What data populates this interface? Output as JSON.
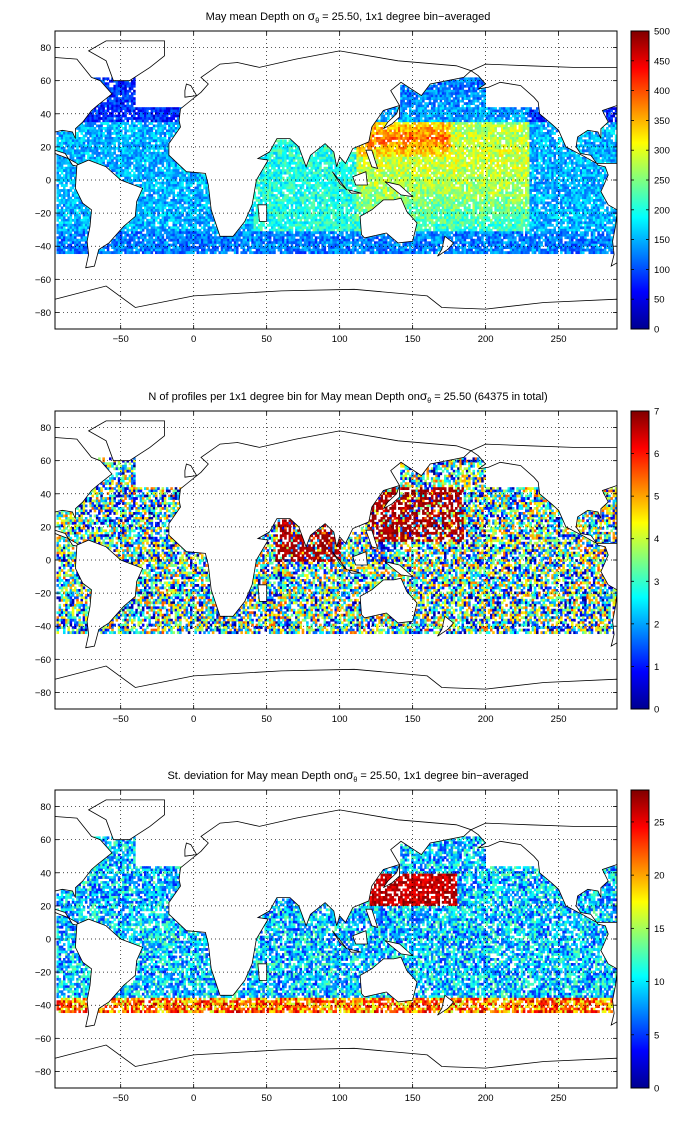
{
  "chart_data": [
    {
      "type": "heatmap",
      "title": {
        "prefix": "May mean Depth on ",
        "sigma": "σ",
        "sub": "θ",
        "suffix": " = 25.50, 1x1 degree bin−averaged"
      },
      "xlim": [
        -95,
        290
      ],
      "ylim": [
        -90,
        90
      ],
      "x_ticks": [
        -50,
        0,
        50,
        100,
        150,
        200,
        250
      ],
      "y_ticks": [
        80,
        60,
        40,
        20,
        0,
        -20,
        -40,
        -60,
        -80
      ],
      "grid": "dotted",
      "colorbar": {
        "range": [
          0,
          500
        ],
        "ticks": [
          0,
          50,
          100,
          150,
          200,
          250,
          300,
          350,
          400,
          450,
          500
        ],
        "colormap": "jet",
        "placement": "right"
      }
    },
    {
      "type": "heatmap",
      "title": {
        "prefix": "N of profiles per 1x1 degree bin for May mean Depth on",
        "sigma": "σ",
        "sub": "θ",
        "suffix": " = 25.50 (64375 in total)"
      },
      "xlim": [
        -95,
        290
      ],
      "ylim": [
        -90,
        90
      ],
      "x_ticks": [
        -50,
        0,
        50,
        100,
        150,
        200,
        250
      ],
      "y_ticks": [
        80,
        60,
        40,
        20,
        0,
        -20,
        -40,
        -60,
        -80
      ],
      "grid": "dotted",
      "colorbar": {
        "range": [
          0,
          7
        ],
        "ticks": [
          0,
          1,
          2,
          3,
          4,
          5,
          6,
          7
        ],
        "colormap": "jet",
        "placement": "right"
      }
    },
    {
      "type": "heatmap",
      "title": {
        "prefix": "St. deviation for May mean Depth on",
        "sigma": "σ",
        "sub": "θ",
        "suffix": " = 25.50, 1x1 degree bin−averaged"
      },
      "xlim": [
        -95,
        290
      ],
      "ylim": [
        -90,
        90
      ],
      "x_ticks": [
        -50,
        0,
        50,
        100,
        150,
        200,
        250
      ],
      "y_ticks": [
        80,
        60,
        40,
        20,
        0,
        -20,
        -40,
        -60,
        -80
      ],
      "grid": "dotted",
      "colorbar": {
        "range": [
          0,
          28
        ],
        "ticks": [
          0,
          5,
          10,
          15,
          20,
          25
        ],
        "colormap": "jet",
        "placement": "right"
      }
    }
  ]
}
